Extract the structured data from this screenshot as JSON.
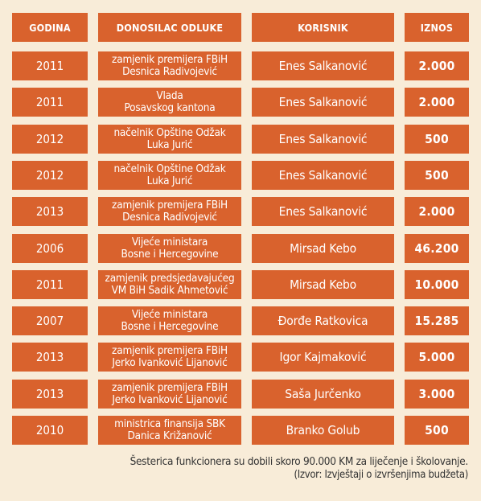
{
  "headers": {
    "godina": "GODINA",
    "donosilac": "DONOSILAC ODLUKE",
    "korisnik": "KORISNIK",
    "iznos": "IZNOS"
  },
  "rows": [
    {
      "godina": "2011",
      "donosilac_1": "zamjenik premijera FBiH",
      "donosilac_2": "Desnica Radivojević",
      "korisnik": "Enes Salkanović",
      "iznos": "2.000"
    },
    {
      "godina": "2011",
      "donosilac_1": "Vlada",
      "donosilac_2": "Posavskog kantona",
      "korisnik": "Enes Salkanović",
      "iznos": "2.000"
    },
    {
      "godina": "2012",
      "donosilac_1": "načelnik Opštine Odžak",
      "donosilac_2": "Luka Jurić",
      "korisnik": "Enes Salkanović",
      "iznos": "500"
    },
    {
      "godina": "2012",
      "donosilac_1": "načelnik Opštine Odžak",
      "donosilac_2": "Luka Jurić",
      "korisnik": "Enes Salkanović",
      "iznos": "500"
    },
    {
      "godina": "2013",
      "donosilac_1": "zamjenik premijera FBiH",
      "donosilac_2": "Desnica Radivojević",
      "korisnik": "Enes Salkanović",
      "iznos": "2.000"
    },
    {
      "godina": "2006",
      "donosilac_1": "Vijeće ministara",
      "donosilac_2": "Bosne i Hercegovine",
      "korisnik": "Mirsad Kebo",
      "iznos": "46.200"
    },
    {
      "godina": "2011",
      "donosilac_1": "zamjenik predsjedavajućeg",
      "donosilac_2": "VM BiH Sadik Ahmetović",
      "korisnik": "Mirsad Kebo",
      "iznos": "10.000"
    },
    {
      "godina": "2007",
      "donosilac_1": "Vijeće ministara",
      "donosilac_2": "Bosne i Hercegovine",
      "korisnik": "Đorđe Ratkovica",
      "iznos": "15.285"
    },
    {
      "godina": "2013",
      "donosilac_1": "zamjenik premijera FBiH",
      "donosilac_2": "Jerko Ivanković Lijanović",
      "korisnik": "Igor Kajmaković",
      "iznos": "5.000"
    },
    {
      "godina": "2013",
      "donosilac_1": "zamjenik premijera FBiH",
      "donosilac_2": "Jerko Ivanković Lijanović",
      "korisnik": "Saša Jurčenko",
      "iznos": "3.000"
    },
    {
      "godina": "2010",
      "donosilac_1": "ministrica finansija SBK",
      "donosilac_2": "Danica Križanović",
      "korisnik": "Branko Golub",
      "iznos": "500"
    }
  ],
  "footer": {
    "note": "Šesterica funkcionera su dobili skoro 90.000 KM za liječenje i školovanje.",
    "source": "(Izvor: Izvještaji o izvršenjima budžeta)"
  },
  "colors": {
    "background": "#f8ecd8",
    "cell": "#d9622d",
    "text": "#ffffff"
  }
}
